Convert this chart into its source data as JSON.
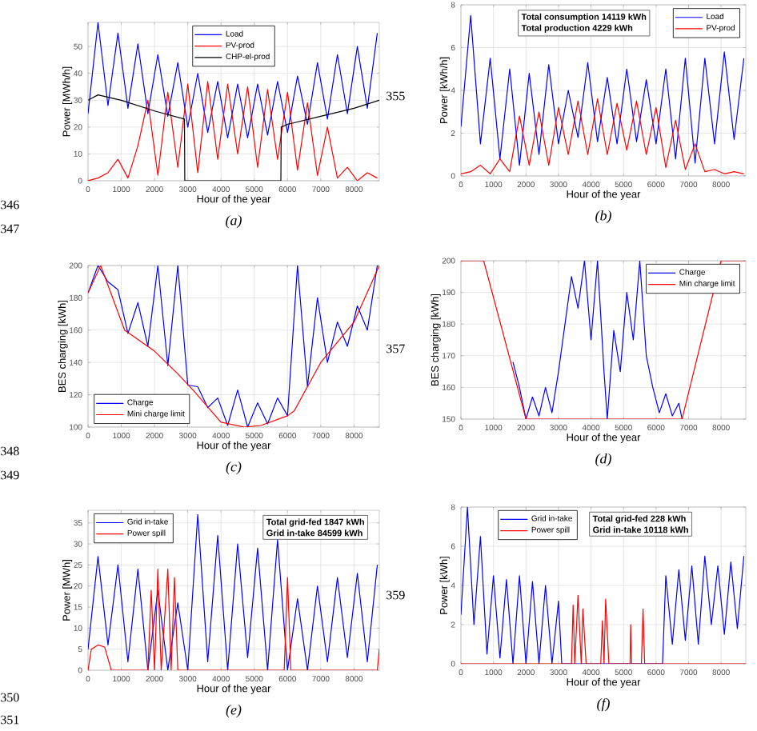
{
  "chart_data": [
    {
      "type": "line",
      "title": "(a)",
      "xlabel": "Hour of the year",
      "ylabel": "Power [MWh/h]",
      "xlim": [
        0,
        8760
      ],
      "ylim": [
        0,
        59
      ],
      "xticks": [
        0,
        1000,
        2000,
        3000,
        4000,
        5000,
        6000,
        7000,
        8000
      ],
      "yticks": [
        0,
        10,
        20,
        30,
        40,
        50
      ],
      "grid": true,
      "legend": "top",
      "series": [
        {
          "name": "Load",
          "color": "#0000ff",
          "x": [
            0,
            300,
            600,
            900,
            1200,
            1500,
            1800,
            2100,
            2400,
            2700,
            3000,
            3300,
            3600,
            3900,
            4200,
            4500,
            4800,
            5100,
            5400,
            5700,
            6000,
            6300,
            6600,
            6900,
            7200,
            7500,
            7800,
            8100,
            8400,
            8700
          ],
          "values": [
            25,
            59,
            28,
            55,
            27,
            51,
            25,
            47,
            24,
            44,
            20,
            40,
            18,
            37,
            16,
            36,
            16,
            36,
            17,
            37,
            18,
            39,
            21,
            44,
            23,
            47,
            25,
            50,
            27,
            55
          ]
        },
        {
          "name": "PV-prod",
          "color": "#ff0000",
          "x": [
            0,
            300,
            600,
            900,
            1200,
            1500,
            1800,
            2100,
            2400,
            2700,
            3000,
            3300,
            3600,
            3900,
            4200,
            4500,
            4800,
            5100,
            5400,
            5700,
            6000,
            6300,
            6600,
            6900,
            7200,
            7500,
            7800,
            8100,
            8400,
            8700
          ],
          "values": [
            0,
            1,
            3,
            8,
            1,
            13,
            30,
            2,
            33,
            5,
            36,
            3,
            37,
            8,
            36,
            10,
            35,
            5,
            34,
            8,
            33,
            4,
            29,
            2,
            20,
            1,
            5,
            0,
            3,
            1
          ]
        },
        {
          "name": "CHP-el-prod",
          "color": "#000000",
          "x": [
            0,
            300,
            1000,
            2000,
            2900,
            2910,
            5800,
            5810,
            6000,
            7000,
            8000,
            8760
          ],
          "values": [
            30,
            32,
            30,
            26,
            23,
            0,
            0,
            20,
            21,
            24,
            27,
            30
          ]
        }
      ]
    },
    {
      "type": "line",
      "title": "(b)",
      "xlabel": "Hour of the year",
      "ylabel": "Power [kWh/h]",
      "xlim": [
        0,
        8760
      ],
      "ylim": [
        0,
        8
      ],
      "xticks": [
        0,
        1000,
        2000,
        3000,
        4000,
        5000,
        6000,
        7000,
        8000
      ],
      "yticks": [
        0,
        2,
        4,
        6,
        8
      ],
      "grid": true,
      "legend": "top right",
      "annotations": [
        "**Total consumption 14119 kWh**",
        "**Total production 4229 kWh**"
      ],
      "series": [
        {
          "name": "Load",
          "color": "#0000ff",
          "x": [
            0,
            300,
            600,
            900,
            1200,
            1500,
            1800,
            2100,
            2400,
            2700,
            3000,
            3300,
            3600,
            3900,
            4200,
            4500,
            4800,
            5100,
            5400,
            5700,
            6000,
            6300,
            6600,
            6900,
            7200,
            7500,
            7800,
            8100,
            8400,
            8700
          ],
          "values": [
            2.3,
            7.5,
            1.5,
            5.5,
            0.8,
            5,
            0.5,
            4.8,
            1,
            5.2,
            1.5,
            4,
            1.8,
            5.3,
            1.6,
            4.6,
            1.5,
            5,
            1.6,
            4.5,
            1.5,
            5,
            0.8,
            5.5,
            0.6,
            5.5,
            1.5,
            5.8,
            1.7,
            5.5
          ]
        },
        {
          "name": "PV-prod",
          "color": "#ff0000",
          "x": [
            0,
            300,
            600,
            900,
            1200,
            1500,
            1800,
            2100,
            2400,
            2700,
            3000,
            3300,
            3600,
            3900,
            4200,
            4500,
            4800,
            5100,
            5400,
            5700,
            6000,
            6300,
            6600,
            6900,
            7200,
            7500,
            7800,
            8100,
            8400,
            8700
          ],
          "values": [
            0.1,
            0.2,
            0.5,
            0.1,
            0.8,
            0.2,
            2.8,
            0.5,
            3,
            0.5,
            3.2,
            1,
            3.5,
            1,
            3.6,
            1,
            3.4,
            1.2,
            3.5,
            1,
            3.2,
            0.4,
            2.6,
            0.3,
            1.5,
            0.2,
            0.3,
            0.1,
            0.2,
            0.1
          ]
        }
      ]
    },
    {
      "type": "line",
      "title": "(c)",
      "xlabel": "Hour of the year",
      "ylabel": "BES charging [kWh]",
      "xlim": [
        0,
        8760
      ],
      "ylim": [
        100,
        200
      ],
      "xticks": [
        0,
        1000,
        2000,
        3000,
        4000,
        5000,
        6000,
        7000,
        8000
      ],
      "yticks": [
        100,
        120,
        140,
        160,
        180,
        200
      ],
      "grid": true,
      "legend": "bottom left",
      "series": [
        {
          "name": "Charge",
          "color": "#0000ff",
          "x": [
            0,
            300,
            600,
            900,
            1200,
            1500,
            1800,
            2100,
            2400,
            2700,
            3000,
            3300,
            3600,
            3900,
            4200,
            4500,
            4800,
            5100,
            5400,
            5700,
            6000,
            6300,
            6600,
            6900,
            7200,
            7500,
            7800,
            8100,
            8400,
            8700
          ],
          "values": [
            183,
            200,
            190,
            185,
            158,
            177,
            150,
            200,
            138,
            200,
            126,
            125,
            112,
            118,
            101,
            123,
            100,
            115,
            102,
            118,
            107,
            200,
            125,
            180,
            140,
            165,
            150,
            175,
            160,
            200
          ]
        },
        {
          "name": "Mini charge limit",
          "color": "#ff0000",
          "x": [
            0,
            380,
            1100,
            2000,
            2700,
            3200,
            4000,
            4700,
            5200,
            6000,
            6200,
            7000,
            8000,
            8760
          ],
          "values": [
            183,
            200,
            160,
            147,
            133,
            122,
            103,
            100,
            101,
            107,
            110,
            140,
            165,
            200
          ]
        }
      ]
    },
    {
      "type": "line",
      "title": "(d)",
      "xlabel": "Hour of the year",
      "ylabel": "BES charging [kWh]",
      "xlim": [
        0,
        8760
      ],
      "ylim": [
        150,
        200
      ],
      "xticks": [
        0,
        1000,
        2000,
        3000,
        4000,
        5000,
        6000,
        7000,
        8000
      ],
      "yticks": [
        150,
        160,
        170,
        180,
        190,
        200
      ],
      "grid": true,
      "legend": "top right",
      "series": [
        {
          "name": "Charge",
          "color": "#0000ff",
          "x": [
            1600,
            1800,
            2000,
            2200,
            2400,
            2600,
            2800,
            3000,
            3200,
            3400,
            3600,
            3800,
            4000,
            4200,
            4400,
            4500,
            4700,
            4900,
            5100,
            5300,
            5500,
            5700,
            5900,
            6100,
            6300,
            6500,
            6700,
            6800
          ],
          "values": [
            168,
            160,
            150,
            157,
            151,
            160,
            152,
            165,
            180,
            195,
            185,
            200,
            175,
            200,
            165,
            150,
            178,
            165,
            190,
            175,
            200,
            170,
            160,
            152,
            158,
            151,
            155,
            150
          ]
        },
        {
          "name": "Min charge limit",
          "color": "#ff0000",
          "x": [
            0,
            700,
            2000,
            6800,
            8000,
            8760
          ],
          "values": [
            200,
            200,
            150,
            150,
            200,
            200
          ]
        }
      ]
    },
    {
      "type": "line",
      "title": "(e)",
      "xlabel": "Hour of the year",
      "ylabel": "Power [MWh]",
      "xlim": [
        0,
        8760
      ],
      "ylim": [
        0,
        38
      ],
      "xticks": [
        0,
        1000,
        2000,
        3000,
        4000,
        5000,
        6000,
        7000,
        8000
      ],
      "yticks": [
        0,
        5,
        10,
        15,
        20,
        25,
        30,
        35
      ],
      "grid": true,
      "legend": "top left",
      "annotations": [
        "**Total grid-fed 1847 kWh**",
        "**Grid in-take 84599 kWh**"
      ],
      "series": [
        {
          "name": "Grid in-take",
          "color": "#0000ff",
          "x": [
            0,
            300,
            600,
            900,
            1200,
            1500,
            1800,
            2100,
            2400,
            2700,
            3000,
            3300,
            3600,
            3900,
            4200,
            4500,
            4800,
            5100,
            5400,
            5700,
            6000,
            6300,
            6600,
            6900,
            7200,
            7500,
            7800,
            8100,
            8400,
            8700
          ],
          "values": [
            5,
            27,
            6,
            25,
            2,
            24,
            0,
            19,
            0,
            16,
            0,
            37,
            2,
            32,
            0,
            30,
            3,
            29,
            0,
            31,
            0,
            17,
            0,
            20,
            2,
            22,
            3,
            23,
            2,
            25
          ]
        },
        {
          "name": "Power spill",
          "color": "#ff0000",
          "x": [
            0,
            100,
            300,
            500,
            700,
            1800,
            1900,
            2000,
            2100,
            2200,
            2400,
            2500,
            2600,
            2700,
            5900,
            6000,
            6100,
            8700,
            8760
          ],
          "values": [
            0,
            5,
            6,
            5.5,
            0,
            0,
            19,
            0,
            24,
            0,
            24,
            0,
            22,
            0,
            0,
            22,
            0,
            0,
            5
          ]
        }
      ]
    },
    {
      "type": "line",
      "title": "(f)",
      "xlabel": "Hour of the year",
      "ylabel": "Power [kWh]",
      "xlim": [
        0,
        8760
      ],
      "ylim": [
        0,
        8
      ],
      "xticks": [
        0,
        1000,
        2000,
        3000,
        4000,
        5000,
        6000,
        7000,
        8000
      ],
      "yticks": [
        0,
        2,
        4,
        6,
        8
      ],
      "grid": true,
      "legend": "top left",
      "annotations": [
        "**Total grid-fed 228 kWh**",
        "**Grid in-take 10118 kWh**"
      ],
      "series": [
        {
          "name": "Grid in-take",
          "color": "#0000ff",
          "x": [
            0,
            200,
            400,
            600,
            800,
            1000,
            1200,
            1400,
            1600,
            1800,
            2000,
            2200,
            2400,
            2600,
            2800,
            3000,
            3100,
            6200,
            6300,
            6500,
            6700,
            6900,
            7100,
            7300,
            7500,
            7700,
            7900,
            8100,
            8300,
            8500,
            8700
          ],
          "values": [
            2.5,
            8,
            2,
            6.5,
            0.5,
            4.5,
            0.3,
            4.3,
            0,
            4.5,
            0,
            4.2,
            0,
            4,
            0,
            3.2,
            0,
            0,
            4.5,
            1,
            4.8,
            1.2,
            5,
            1,
            5.5,
            2,
            5,
            1.5,
            5.2,
            1.8,
            5.5
          ]
        },
        {
          "name": "Power spill",
          "color": "#ff0000",
          "x": [
            0,
            3400,
            3450,
            3500,
            3600,
            3700,
            3750,
            3850,
            4300,
            4350,
            4400,
            4450,
            4550,
            5200,
            5220,
            5250,
            5550,
            5600,
            5650,
            8760
          ],
          "values": [
            0,
            0,
            3,
            0,
            3.5,
            0,
            2.8,
            0,
            0,
            2.2,
            0,
            3.3,
            0,
            0,
            2,
            0,
            0,
            2.8,
            0,
            0
          ]
        }
      ]
    },
    {
      "type": "other",
      "annotations": [
        "346",
        "347",
        "355",
        "348",
        "349",
        "357",
        "350",
        "351",
        "359"
      ]
    }
  ]
}
